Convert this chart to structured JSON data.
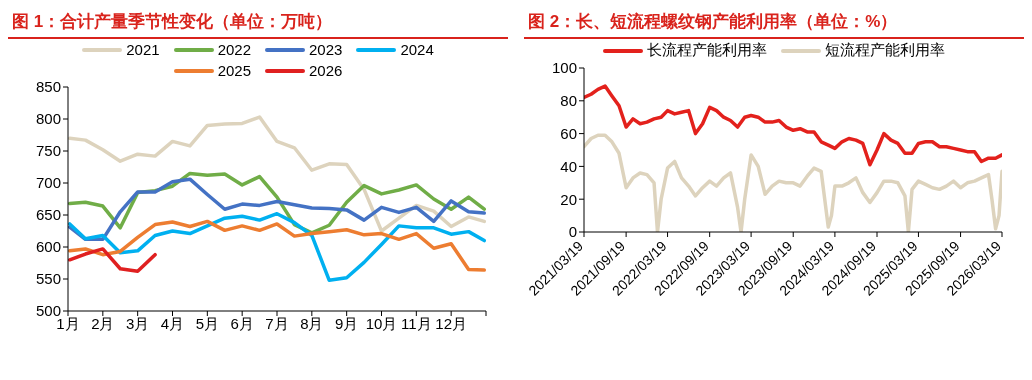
{
  "chart_data": [
    {
      "type": "line",
      "title": "图 1：合计产量季节性变化（单位：万吨）",
      "legend": "top",
      "grid": false,
      "marker": "none",
      "line_style": "solid",
      "x": [
        1.05,
        1.5,
        2,
        2.5,
        3,
        3.5,
        4,
        4.5,
        5,
        5.5,
        6,
        6.5,
        7,
        7.5,
        8,
        8.5,
        9,
        9.5,
        10,
        10.5,
        11,
        11.5,
        12,
        12.5,
        12.95
      ],
      "xlim": [
        1,
        13
      ],
      "xticks": [
        {
          "value": 1,
          "label": "1月"
        },
        {
          "value": 2,
          "label": "2月"
        },
        {
          "value": 3,
          "label": "3月"
        },
        {
          "value": 4,
          "label": "4月"
        },
        {
          "value": 5,
          "label": "5月"
        },
        {
          "value": 6,
          "label": "6月"
        },
        {
          "value": 7,
          "label": "7月"
        },
        {
          "value": 8,
          "label": "8月"
        },
        {
          "value": 9,
          "label": "9月"
        },
        {
          "value": 10,
          "label": "10月"
        },
        {
          "value": 11,
          "label": "11月"
        },
        {
          "value": 12,
          "label": "12月"
        },
        {
          "value": 13,
          "label": null
        }
      ],
      "ylim": [
        500,
        850
      ],
      "yticks": [
        500,
        550,
        600,
        650,
        700,
        750,
        800,
        850
      ],
      "series": [
        {
          "name": "2021",
          "color": "#ddd3bd",
          "values": [
            770,
            767,
            752,
            734,
            745,
            742,
            765,
            758,
            790,
            792,
            793,
            803,
            765,
            755,
            720,
            730,
            729,
            690,
            625,
            645,
            665,
            656,
            632,
            647,
            640
          ]
        },
        {
          "name": "2022",
          "color": "#70ad47",
          "values": [
            668,
            670,
            664,
            630,
            685,
            688,
            695,
            715,
            712,
            714,
            697,
            710,
            678,
            635,
            622,
            634,
            670,
            696,
            683,
            689,
            697,
            675,
            659,
            678,
            659
          ]
        },
        {
          "name": "2023",
          "color": "#4472c4",
          "values": [
            631,
            612,
            612,
            655,
            686,
            686,
            702,
            706,
            682,
            659,
            667,
            665,
            671,
            666,
            661,
            660,
            658,
            642,
            662,
            654,
            662,
            640,
            672,
            655,
            653
          ]
        },
        {
          "name": "2024",
          "color": "#00b0f0",
          "values": [
            636,
            613,
            618,
            591,
            594,
            618,
            625,
            621,
            633,
            645,
            648,
            642,
            652,
            638,
            618,
            548,
            552,
            576,
            604,
            633,
            630,
            630,
            620,
            624,
            610
          ]
        },
        {
          "name": "2025",
          "color": "#ed7d31",
          "values": [
            594,
            597,
            588,
            593,
            615,
            635,
            639,
            632,
            640,
            626,
            633,
            626,
            636,
            617,
            621,
            624,
            627,
            619,
            621,
            612,
            621,
            598,
            605,
            565,
            564
          ]
        },
        {
          "name": "2026",
          "color": "#e02020",
          "values": [
            580,
            589,
            597,
            566,
            562,
            588,
            null,
            null,
            null,
            null,
            null,
            null,
            null,
            null,
            null,
            null,
            null,
            null,
            null,
            null,
            null,
            null,
            null,
            null,
            null
          ]
        }
      ]
    },
    {
      "type": "line",
      "title": "图 2：长、短流程螺纹钢产能利用率（单位：%）",
      "legend": "top",
      "grid": false,
      "marker": "none",
      "line_style": "solid",
      "xlim": [
        "2021-03-19",
        "2026-03-19"
      ],
      "xticks": [
        {
          "value": "2021-03-19",
          "label": "2021/03/19"
        },
        {
          "value": "2021-09-19",
          "label": "2021/09/19"
        },
        {
          "value": "2022-03-19",
          "label": "2022/03/19"
        },
        {
          "value": "2022-09-19",
          "label": "2022/09/19"
        },
        {
          "value": "2023-03-19",
          "label": "2023/03/19"
        },
        {
          "value": "2023-09-19",
          "label": "2023/09/19"
        },
        {
          "value": "2024-03-19",
          "label": "2024/03/19"
        },
        {
          "value": "2024-09-19",
          "label": "2024/09/19"
        },
        {
          "value": "2025-03-19",
          "label": "2025/03/19"
        },
        {
          "value": "2025-09-19",
          "label": "2025/09/19"
        },
        {
          "value": "2026-03-19",
          "label": "2026/03/19"
        }
      ],
      "ylim": [
        0,
        100
      ],
      "yticks": [
        0,
        20,
        40,
        60,
        80,
        100
      ],
      "series": [
        {
          "name": "长流程产能利用率",
          "color": "#e3211c",
          "x": [
            "2021-03-19",
            "2021-04-19",
            "2021-05-19",
            "2021-06-19",
            "2021-07-19",
            "2021-08-19",
            "2021-09-19",
            "2021-10-19",
            "2021-11-19",
            "2021-12-19",
            "2022-01-19",
            "2022-02-19",
            "2022-03-19",
            "2022-04-19",
            "2022-05-19",
            "2022-06-19",
            "2022-07-19",
            "2022-08-19",
            "2022-09-19",
            "2022-10-19",
            "2022-11-19",
            "2022-12-19",
            "2023-01-19",
            "2023-02-19",
            "2023-03-19",
            "2023-04-19",
            "2023-05-19",
            "2023-06-19",
            "2023-07-19",
            "2023-08-19",
            "2023-09-19",
            "2023-10-19",
            "2023-11-19",
            "2023-12-19",
            "2024-01-19",
            "2024-02-19",
            "2024-03-19",
            "2024-04-19",
            "2024-05-19",
            "2024-06-19",
            "2024-07-19",
            "2024-08-19",
            "2024-09-19",
            "2024-10-19",
            "2024-11-19",
            "2024-12-19",
            "2025-01-19",
            "2025-02-19",
            "2025-03-19",
            "2025-04-19",
            "2025-05-19",
            "2025-06-19",
            "2025-07-19",
            "2025-08-19",
            "2025-09-19",
            "2025-10-19",
            "2025-11-19",
            "2025-12-19",
            "2026-01-19",
            "2026-02-19",
            "2026-03-19"
          ],
          "values": [
            82,
            84,
            87,
            89,
            83,
            77,
            64,
            69,
            66,
            67,
            69,
            70,
            74,
            72,
            73,
            74,
            60,
            66,
            76,
            74,
            70,
            68,
            64,
            70,
            71,
            70,
            67,
            67,
            68,
            64,
            62,
            63,
            61,
            61,
            55,
            53,
            51,
            55,
            57,
            56,
            54,
            41,
            50,
            60,
            56,
            54,
            48,
            48,
            54,
            55,
            55,
            52,
            52,
            51,
            50,
            49,
            49,
            43,
            45,
            45,
            47
          ]
        },
        {
          "name": "短流程产能利用率",
          "color": "#ddd3bd",
          "x": [
            "2021-03-19",
            "2021-04-19",
            "2021-05-19",
            "2021-06-19",
            "2021-07-19",
            "2021-08-19",
            "2021-09-19",
            "2021-10-19",
            "2021-11-19",
            "2021-12-19",
            "2022-01-19",
            "2022-02-03",
            "2022-02-19",
            "2022-03-19",
            "2022-04-19",
            "2022-05-19",
            "2022-06-19",
            "2022-07-19",
            "2022-08-19",
            "2022-09-19",
            "2022-10-19",
            "2022-11-19",
            "2022-12-19",
            "2023-01-19",
            "2023-02-03",
            "2023-02-19",
            "2023-03-19",
            "2023-04-19",
            "2023-05-19",
            "2023-06-19",
            "2023-07-19",
            "2023-08-19",
            "2023-09-19",
            "2023-10-19",
            "2023-11-19",
            "2023-12-19",
            "2024-01-19",
            "2024-02-19",
            "2024-03-04",
            "2024-03-19",
            "2024-04-19",
            "2024-05-19",
            "2024-06-19",
            "2024-07-19",
            "2024-08-19",
            "2024-09-19",
            "2024-10-19",
            "2024-11-19",
            "2024-12-19",
            "2025-01-19",
            "2025-02-03",
            "2025-02-19",
            "2025-03-19",
            "2025-04-19",
            "2025-05-19",
            "2025-06-19",
            "2025-07-19",
            "2025-08-19",
            "2025-09-19",
            "2025-10-19",
            "2025-11-19",
            "2025-12-19",
            "2026-01-19",
            "2026-02-03",
            "2026-02-19",
            "2026-03-06",
            "2026-03-19"
          ],
          "values": [
            52,
            57,
            59,
            59,
            55,
            48,
            27,
            33,
            36,
            35,
            30,
            0,
            20,
            39,
            43,
            33,
            28,
            22,
            27,
            31,
            28,
            33,
            36,
            15,
            0,
            20,
            47,
            40,
            23,
            28,
            31,
            30,
            30,
            28,
            34,
            39,
            37,
            3,
            10,
            28,
            28,
            30,
            33,
            24,
            18,
            24,
            31,
            31,
            30,
            22,
            0,
            26,
            31,
            29,
            27,
            26,
            28,
            31,
            27,
            30,
            31,
            33,
            35,
            20,
            2,
            10,
            37
          ]
        }
      ]
    }
  ]
}
